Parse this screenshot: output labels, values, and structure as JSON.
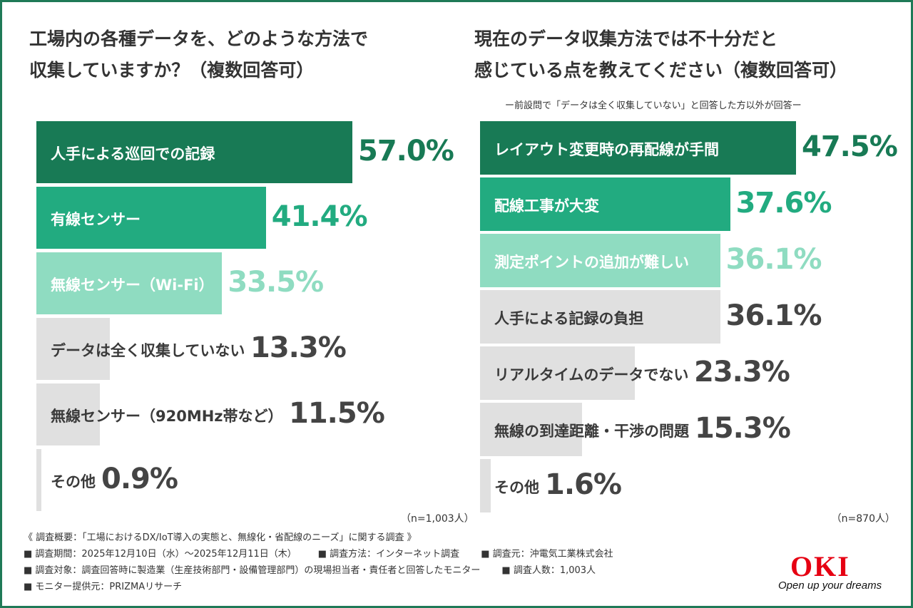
{
  "chart_data": [
    {
      "type": "bar",
      "orientation": "horizontal",
      "title": [
        "工場内の各種データを、どのような方法で",
        "収集していますか？（複数回答可）"
      ],
      "categories": [
        "人手による巡回での記録",
        "有線センサー",
        "無線センサー（Wi-Fi）",
        "データは全く収集していない",
        "無線センサー（920MHz帯など）",
        "その他"
      ],
      "values": [
        57.0,
        41.4,
        33.5,
        13.3,
        11.5,
        0.9
      ],
      "value_labels": [
        "57.0%",
        "41.4%",
        "33.5%",
        "13.3%",
        "11.5%",
        "0.9%"
      ],
      "colors": [
        "#187a55",
        "#22ab80",
        "#8fdcc1",
        "#e0e0e0",
        "#e0e0e0",
        "#e0e0e0"
      ],
      "label_colors": [
        "#ffffff",
        "#ffffff",
        "#ffffff",
        "#3a3a3a",
        "#3a3a3a",
        "#3a3a3a"
      ],
      "value_colors": [
        "#187a55",
        "#22ab80",
        "#8fdcc1",
        "#444444",
        "#444444",
        "#444444"
      ],
      "note": "（n=1,003人）"
    },
    {
      "type": "bar",
      "orientation": "horizontal",
      "title": [
        "現在のデータ収集方法では不十分だと",
        "感じている点を教えてください（複数回答可）"
      ],
      "subtitle": "ー前設問で「データは全く収集していない」と回答した方以外が回答ー",
      "categories": [
        "レイアウト変更時の再配線が手間",
        "配線工事が大変",
        "測定ポイントの追加が難しい",
        "人手による記録の負担",
        "リアルタイムのデータでない",
        "無線の到達距離・干渉の問題",
        "その他"
      ],
      "values": [
        47.5,
        37.6,
        36.1,
        36.1,
        23.3,
        15.3,
        1.6
      ],
      "value_labels": [
        "47.5%",
        "37.6%",
        "36.1%",
        "36.1%",
        "23.3%",
        "15.3%",
        "1.6%"
      ],
      "colors": [
        "#187a55",
        "#22ab80",
        "#8fdcc1",
        "#e0e0e0",
        "#e0e0e0",
        "#e0e0e0",
        "#e0e0e0"
      ],
      "label_colors": [
        "#ffffff",
        "#ffffff",
        "#ffffff",
        "#3a3a3a",
        "#3a3a3a",
        "#3a3a3a",
        "#3a3a3a"
      ],
      "value_colors": [
        "#187a55",
        "#22ab80",
        "#8fdcc1",
        "#444444",
        "#444444",
        "#444444",
        "#444444"
      ],
      "note": "（n=870人）"
    }
  ],
  "footer": {
    "lines": [
      [
        "《 調査概要：「工場におけるDX/IoT導入の実態と、無線化・省配線のニーズ」に関する調査 》"
      ],
      [
        "■ 調査期間：2025年12月10日（水）～2025年12月11日（木）",
        "■ 調査方法：インターネット調査",
        "■ 調査元：沖電気工業株式会社"
      ],
      [
        "■ 調査対象：調査回答時に製造業（生産技術部門・設備管理部門）の現場担当者・責任者と回答したモニター",
        "■ 調査人数：1,003人"
      ],
      [
        "■ モニター提供元：PRIZMAリサーチ"
      ]
    ]
  },
  "logo": {
    "name": "OKI",
    "tagline": "Open up your dreams"
  }
}
